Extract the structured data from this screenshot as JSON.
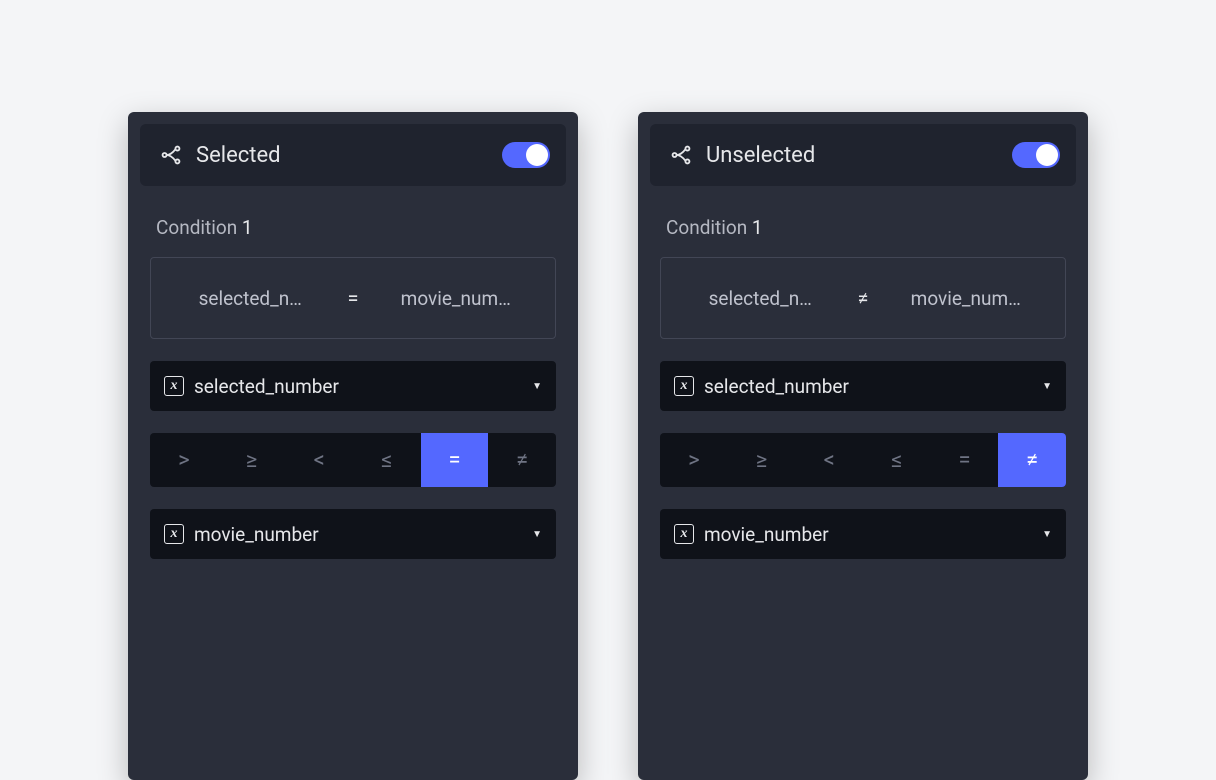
{
  "colors": {
    "page_bg": "#f4f5f7",
    "panel_bg": "#2a2e3a",
    "header_bg": "#1f232e",
    "dropdown_bg": "#0f1219",
    "text_primary": "#e6e7ea",
    "text_muted": "#b5b8c2",
    "accent": "#5468ff",
    "op_inactive": "#6f7484",
    "border": "#424655"
  },
  "operators": [
    {
      "key": "gt",
      "glyph": ">"
    },
    {
      "key": "gte",
      "glyph": "≥"
    },
    {
      "key": "lt",
      "glyph": "<"
    },
    {
      "key": "lte",
      "glyph": "≤"
    },
    {
      "key": "eq",
      "glyph": "="
    },
    {
      "key": "neq",
      "glyph": "≠"
    }
  ],
  "panels": [
    {
      "id": "selected",
      "title": "Selected",
      "toggle_on": true,
      "condition_label": "Condition",
      "condition_number": "1",
      "expression": {
        "left": "selected_number",
        "op_glyph": "=",
        "right": "movie_number"
      },
      "var_a": "selected_number",
      "selected_op_key": "eq",
      "var_b": "movie_number"
    },
    {
      "id": "unselected",
      "title": "Unselected",
      "toggle_on": true,
      "condition_label": "Condition",
      "condition_number": "1",
      "expression": {
        "left": "selected_number",
        "op_glyph": "≠",
        "right": "movie_number"
      },
      "var_a": "selected_number",
      "selected_op_key": "neq",
      "var_b": "movie_number"
    }
  ]
}
